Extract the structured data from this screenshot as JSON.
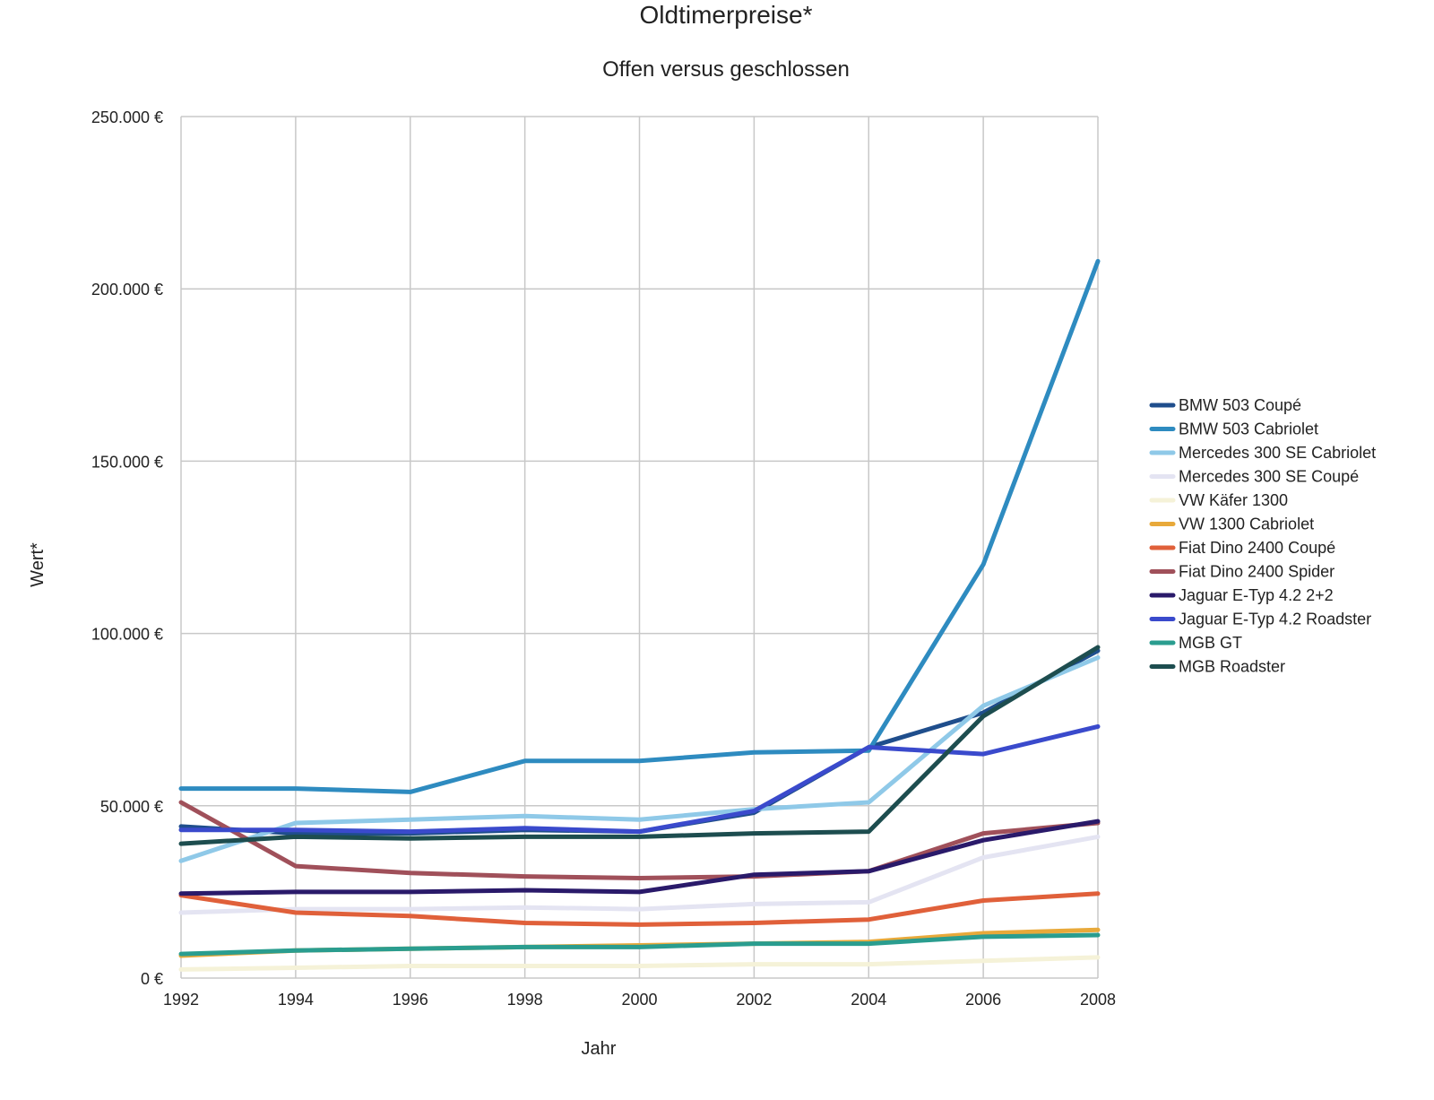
{
  "chart_data": {
    "type": "line",
    "title": "Oldtimerpreise*",
    "subtitle": "Offen versus geschlossen",
    "xlabel": "Jahr",
    "ylabel": "Wert*",
    "x": [
      "1992",
      "1994",
      "1996",
      "1998",
      "2000",
      "2002",
      "2004",
      "2006",
      "2008"
    ],
    "ylim": [
      0,
      250000
    ],
    "yticks": [
      0,
      50000,
      100000,
      150000,
      200000,
      250000
    ],
    "ytick_labels": [
      "0 €",
      "50.000 €",
      "100.000 €",
      "150.000 €",
      "200.000 €",
      "250.000 €"
    ],
    "grid": true,
    "legend_position": "right",
    "series": [
      {
        "name": "BMW 503 Coupé",
        "color": "#1f4e8c",
        "values": [
          44000,
          42000,
          42000,
          43000,
          42500,
          48000,
          67000,
          77000,
          95000
        ]
      },
      {
        "name": "BMW 503 Cabriolet",
        "color": "#2e8bc0",
        "values": [
          55000,
          55000,
          54000,
          63000,
          63000,
          65500,
          66000,
          120000,
          208000
        ]
      },
      {
        "name": "Mercedes 300 SE Cabriolet",
        "color": "#8fc9e8",
        "values": [
          34000,
          45000,
          46000,
          47000,
          46000,
          49000,
          51000,
          79000,
          93000
        ]
      },
      {
        "name": "Mercedes 300 SE Coupé",
        "color": "#e4e4f2",
        "values": [
          19000,
          20000,
          20000,
          20500,
          20000,
          21500,
          22000,
          35000,
          41000
        ]
      },
      {
        "name": "VW Käfer 1300",
        "color": "#f5f2d8",
        "values": [
          2500,
          3000,
          3500,
          3500,
          3500,
          4000,
          4000,
          5000,
          6000
        ]
      },
      {
        "name": "VW 1300 Cabriolet",
        "color": "#e8a93a",
        "values": [
          6500,
          8000,
          8500,
          9000,
          9500,
          10000,
          10500,
          13000,
          14000
        ]
      },
      {
        "name": "Fiat Dino 2400 Coupé",
        "color": "#e0603a",
        "values": [
          24000,
          19000,
          18000,
          16000,
          15500,
          16000,
          17000,
          22500,
          24500
        ]
      },
      {
        "name": "Fiat Dino 2400 Spider",
        "color": "#a0505a",
        "values": [
          51000,
          32500,
          30500,
          29500,
          29000,
          29500,
          31000,
          42000,
          45000
        ]
      },
      {
        "name": "Jaguar E-Typ 4.2 2+2",
        "color": "#2a1a6a",
        "values": [
          24500,
          25000,
          25000,
          25500,
          25000,
          30000,
          31000,
          40000,
          45500
        ]
      },
      {
        "name": "Jaguar E-Typ 4.2 Roadster",
        "color": "#3a4acc",
        "values": [
          43000,
          43000,
          42500,
          43500,
          42500,
          48500,
          67000,
          65000,
          73000
        ]
      },
      {
        "name": "MGB GT",
        "color": "#2a9d8f",
        "values": [
          7000,
          8000,
          8500,
          9000,
          9000,
          10000,
          10000,
          12000,
          12500
        ]
      },
      {
        "name": "MGB Roadster",
        "color": "#1d4d4f",
        "values": [
          39000,
          41000,
          40500,
          41000,
          41000,
          42000,
          42500,
          76000,
          96000
        ]
      }
    ]
  }
}
